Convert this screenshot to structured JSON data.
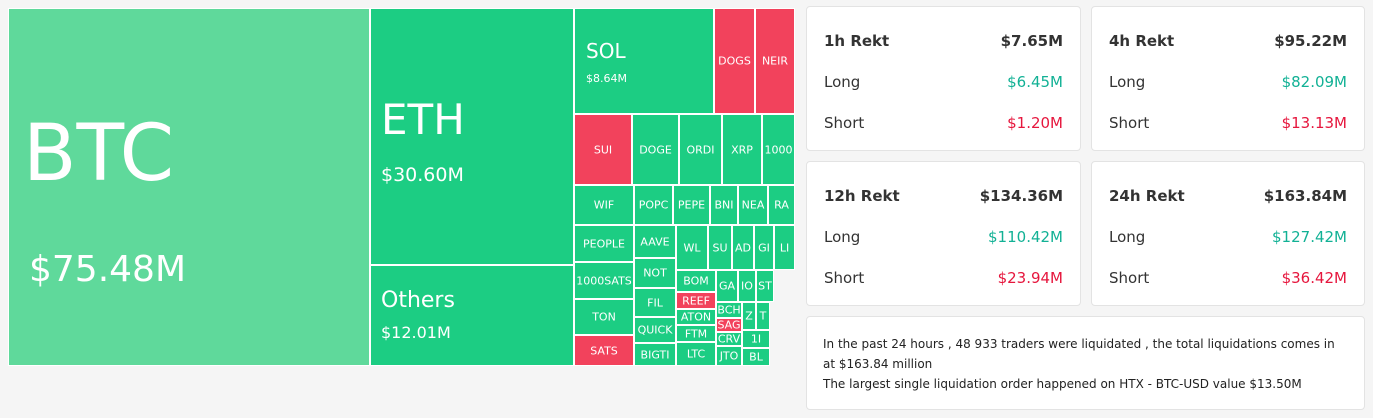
{
  "treemap": {
    "tiles": [
      {
        "label": "BTC",
        "value": "$75.48M",
        "color": "#5fd99b"
      },
      {
        "label": "ETH",
        "value": "$30.60M",
        "color": "#1ccd83"
      },
      {
        "label": "Others",
        "value": "$12.01M",
        "color": "#1ccd83"
      },
      {
        "label": "SOL",
        "value": "$8.64M",
        "color": "#1ccd83"
      },
      {
        "label": "DOGS",
        "color": "#f2425c"
      },
      {
        "label": "NEIR",
        "color": "#f2425c"
      },
      {
        "label": "SUI",
        "color": "#f2425c"
      },
      {
        "label": "DOGE",
        "color": "#1ccd83"
      },
      {
        "label": "ORDI",
        "color": "#1ccd83"
      },
      {
        "label": "XRP",
        "color": "#1ccd83"
      },
      {
        "label": "1000",
        "color": "#1ccd83"
      },
      {
        "label": "WIF",
        "color": "#1ccd83"
      },
      {
        "label": "PEOPLE",
        "color": "#1ccd83"
      },
      {
        "label": "1000SATS",
        "color": "#1ccd83"
      },
      {
        "label": "TON",
        "color": "#1ccd83"
      },
      {
        "label": "SATS",
        "color": "#f2425c"
      },
      {
        "label": "POPC",
        "color": "#1ccd83"
      },
      {
        "label": "PEPE",
        "color": "#1ccd83"
      },
      {
        "label": "BNI",
        "color": "#1ccd83"
      },
      {
        "label": "NEA",
        "color": "#1ccd83"
      },
      {
        "label": "RA",
        "color": "#1ccd83"
      },
      {
        "label": "AAVE",
        "color": "#1ccd83"
      },
      {
        "label": "NOT",
        "color": "#1ccd83"
      },
      {
        "label": "FIL",
        "color": "#1ccd83"
      },
      {
        "label": "QUICK",
        "color": "#1ccd83"
      },
      {
        "label": "BIGTI",
        "color": "#1ccd83"
      },
      {
        "label": "WL",
        "color": "#1ccd83"
      },
      {
        "label": "SU",
        "color": "#1ccd83"
      },
      {
        "label": "AD",
        "color": "#1ccd83"
      },
      {
        "label": "GI",
        "color": "#1ccd83"
      },
      {
        "label": "LI",
        "color": "#1ccd83"
      },
      {
        "label": "BOM",
        "color": "#1ccd83"
      },
      {
        "label": "REEF",
        "color": "#f2425c"
      },
      {
        "label": "ATON",
        "color": "#1ccd83"
      },
      {
        "label": "FTM",
        "color": "#1ccd83"
      },
      {
        "label": "LTC",
        "color": "#1ccd83"
      },
      {
        "label": "GA",
        "color": "#1ccd83"
      },
      {
        "label": "IO",
        "color": "#1ccd83"
      },
      {
        "label": "ST",
        "color": "#1ccd83"
      },
      {
        "label": "BCH",
        "color": "#1ccd83"
      },
      {
        "label": "SAG",
        "color": "#f2425c"
      },
      {
        "label": "CRV",
        "color": "#1ccd83"
      },
      {
        "label": "JTO",
        "color": "#1ccd83"
      },
      {
        "label": "Z",
        "color": "#1ccd83"
      },
      {
        "label": "T",
        "color": "#1ccd83"
      },
      {
        "label": "1I",
        "color": "#1ccd83"
      },
      {
        "label": "BL",
        "color": "#1ccd83"
      }
    ]
  },
  "cards": [
    {
      "title": "1h Rekt",
      "total": "$7.65M",
      "long_label": "Long",
      "long": "$6.45M",
      "short_label": "Short",
      "short": "$1.20M"
    },
    {
      "title": "4h Rekt",
      "total": "$95.22M",
      "long_label": "Long",
      "long": "$82.09M",
      "short_label": "Short",
      "short": "$13.13M"
    },
    {
      "title": "12h Rekt",
      "total": "$134.36M",
      "long_label": "Long",
      "long": "$110.42M",
      "short_label": "Short",
      "short": "$23.94M"
    },
    {
      "title": "24h Rekt",
      "total": "$163.84M",
      "long_label": "Long",
      "long": "$127.42M",
      "short_label": "Short",
      "short": "$36.42M"
    }
  ],
  "note": {
    "lines": [
      "In the past 24 hours , 48 933 traders were liquidated , the total liquidations comes in at $163.84 million",
      "The largest single liquidation order happened on HTX - BTC-USD value $13.50M"
    ]
  }
}
